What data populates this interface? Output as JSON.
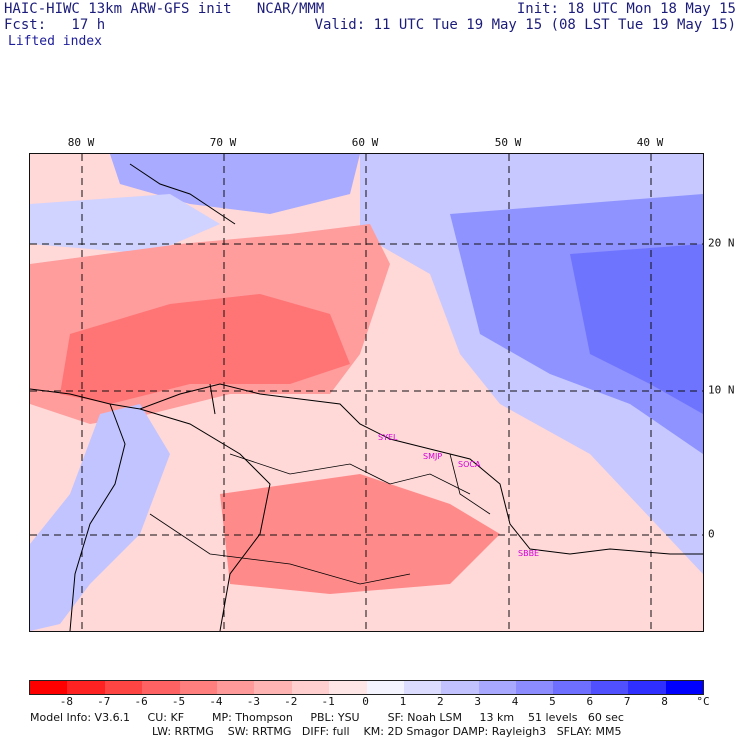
{
  "header": {
    "model_line": "HAIC-HIWC 13km ARW-GFS init   NCAR/MMM",
    "fcst_line": "Fcst:   17 h",
    "init_line": "Init: 18 UTC Mon 18 May 15",
    "valid_line": "Valid: 11 UTC Tue 19 May 15 (08 LST Tue 19 May 15)",
    "field_name": "Lifted index"
  },
  "map": {
    "lon_labels": [
      "80 W",
      "70 W",
      "60 W",
      "50 W",
      "40 W"
    ],
    "lat_labels": [
      "20 N",
      "10 N",
      "0"
    ],
    "cities": [
      "SYEL",
      "SMJP",
      "SOCA",
      "SBBE"
    ]
  },
  "colorbar": {
    "ticks": [
      "-8",
      "-7",
      "-6",
      "-5",
      "-4",
      "-3",
      "-2",
      "-1",
      "0",
      "1",
      "2",
      "3",
      "4",
      "5",
      "6",
      "7",
      "8"
    ],
    "unit": "°C",
    "colors": [
      "#ff0000",
      "#ff2222",
      "#ff4444",
      "#ff6262",
      "#ff7e7e",
      "#ff9a9a",
      "#ffb4b4",
      "#ffcece",
      "#ffe6e6",
      "#f4f4ff",
      "#dcdcff",
      "#c2c2ff",
      "#a8a8ff",
      "#8c8cff",
      "#6f6fff",
      "#5050ff",
      "#2f2fff",
      "#0000ff"
    ]
  },
  "footer": {
    "line1": "Model Info: V3.6.1     CU: KF        MP: Thompson     PBL: YSU        SF: Noah LSM     13 km    51 levels   60 sec",
    "line2": "LW: RRTMG    SW: RRTMG   DIFF: full    KM: 2D Smagor DAMP: Rayleigh3   SFLAY: MM5"
  }
}
